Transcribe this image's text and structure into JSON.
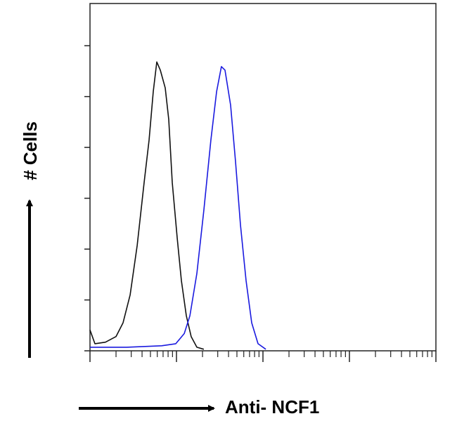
{
  "chart_data": {
    "type": "line",
    "x_label": "Anti- NCF1",
    "y_label": "# Cells",
    "xlog": true,
    "xlim": [
      1,
      10000
    ],
    "xticks": [
      1,
      10,
      100,
      1000,
      10000
    ],
    "xminorticks": [
      2,
      3,
      4,
      5,
      6,
      7,
      8,
      9,
      20,
      30,
      40,
      50,
      60,
      70,
      80,
      90,
      200,
      300,
      400,
      500,
      600,
      700,
      800,
      900,
      2000,
      3000,
      4000,
      5000,
      6000,
      7000,
      8000,
      9000
    ],
    "ylim": [
      0,
      6.83
    ],
    "yticks": [
      0,
      1,
      2,
      3,
      4,
      5,
      6
    ],
    "series": [
      {
        "color": "#111111",
        "x": [
          1,
          1.14,
          1.51,
          2.0,
          2.41,
          2.91,
          3.51,
          4.23,
          4.82,
          5.39,
          5.92,
          6.5,
          7.41,
          8.14,
          8.94,
          10.2,
          11.4,
          13.0,
          14.8,
          17.2,
          20.7
        ],
        "values": [
          0.41,
          0.14,
          0.17,
          0.28,
          0.55,
          1.1,
          2.07,
          3.31,
          4.14,
          5.1,
          5.68,
          5.52,
          5.17,
          4.55,
          3.31,
          2.21,
          1.38,
          0.69,
          0.28,
          0.07,
          0.03
        ]
      },
      {
        "color": "#1a1adf",
        "x": [
          1,
          2.65,
          6.75,
          9.82,
          12.3,
          14.3,
          17.2,
          20.7,
          25.0,
          29.1,
          33.1,
          36.4,
          42.3,
          48.2,
          54.9,
          63.8,
          74.1,
          87.7,
          108
        ],
        "values": [
          0.07,
          0.07,
          0.1,
          0.14,
          0.34,
          0.69,
          1.52,
          2.76,
          4.14,
          5.1,
          5.59,
          5.52,
          4.83,
          3.72,
          2.48,
          1.38,
          0.55,
          0.14,
          0.03
        ]
      }
    ]
  }
}
